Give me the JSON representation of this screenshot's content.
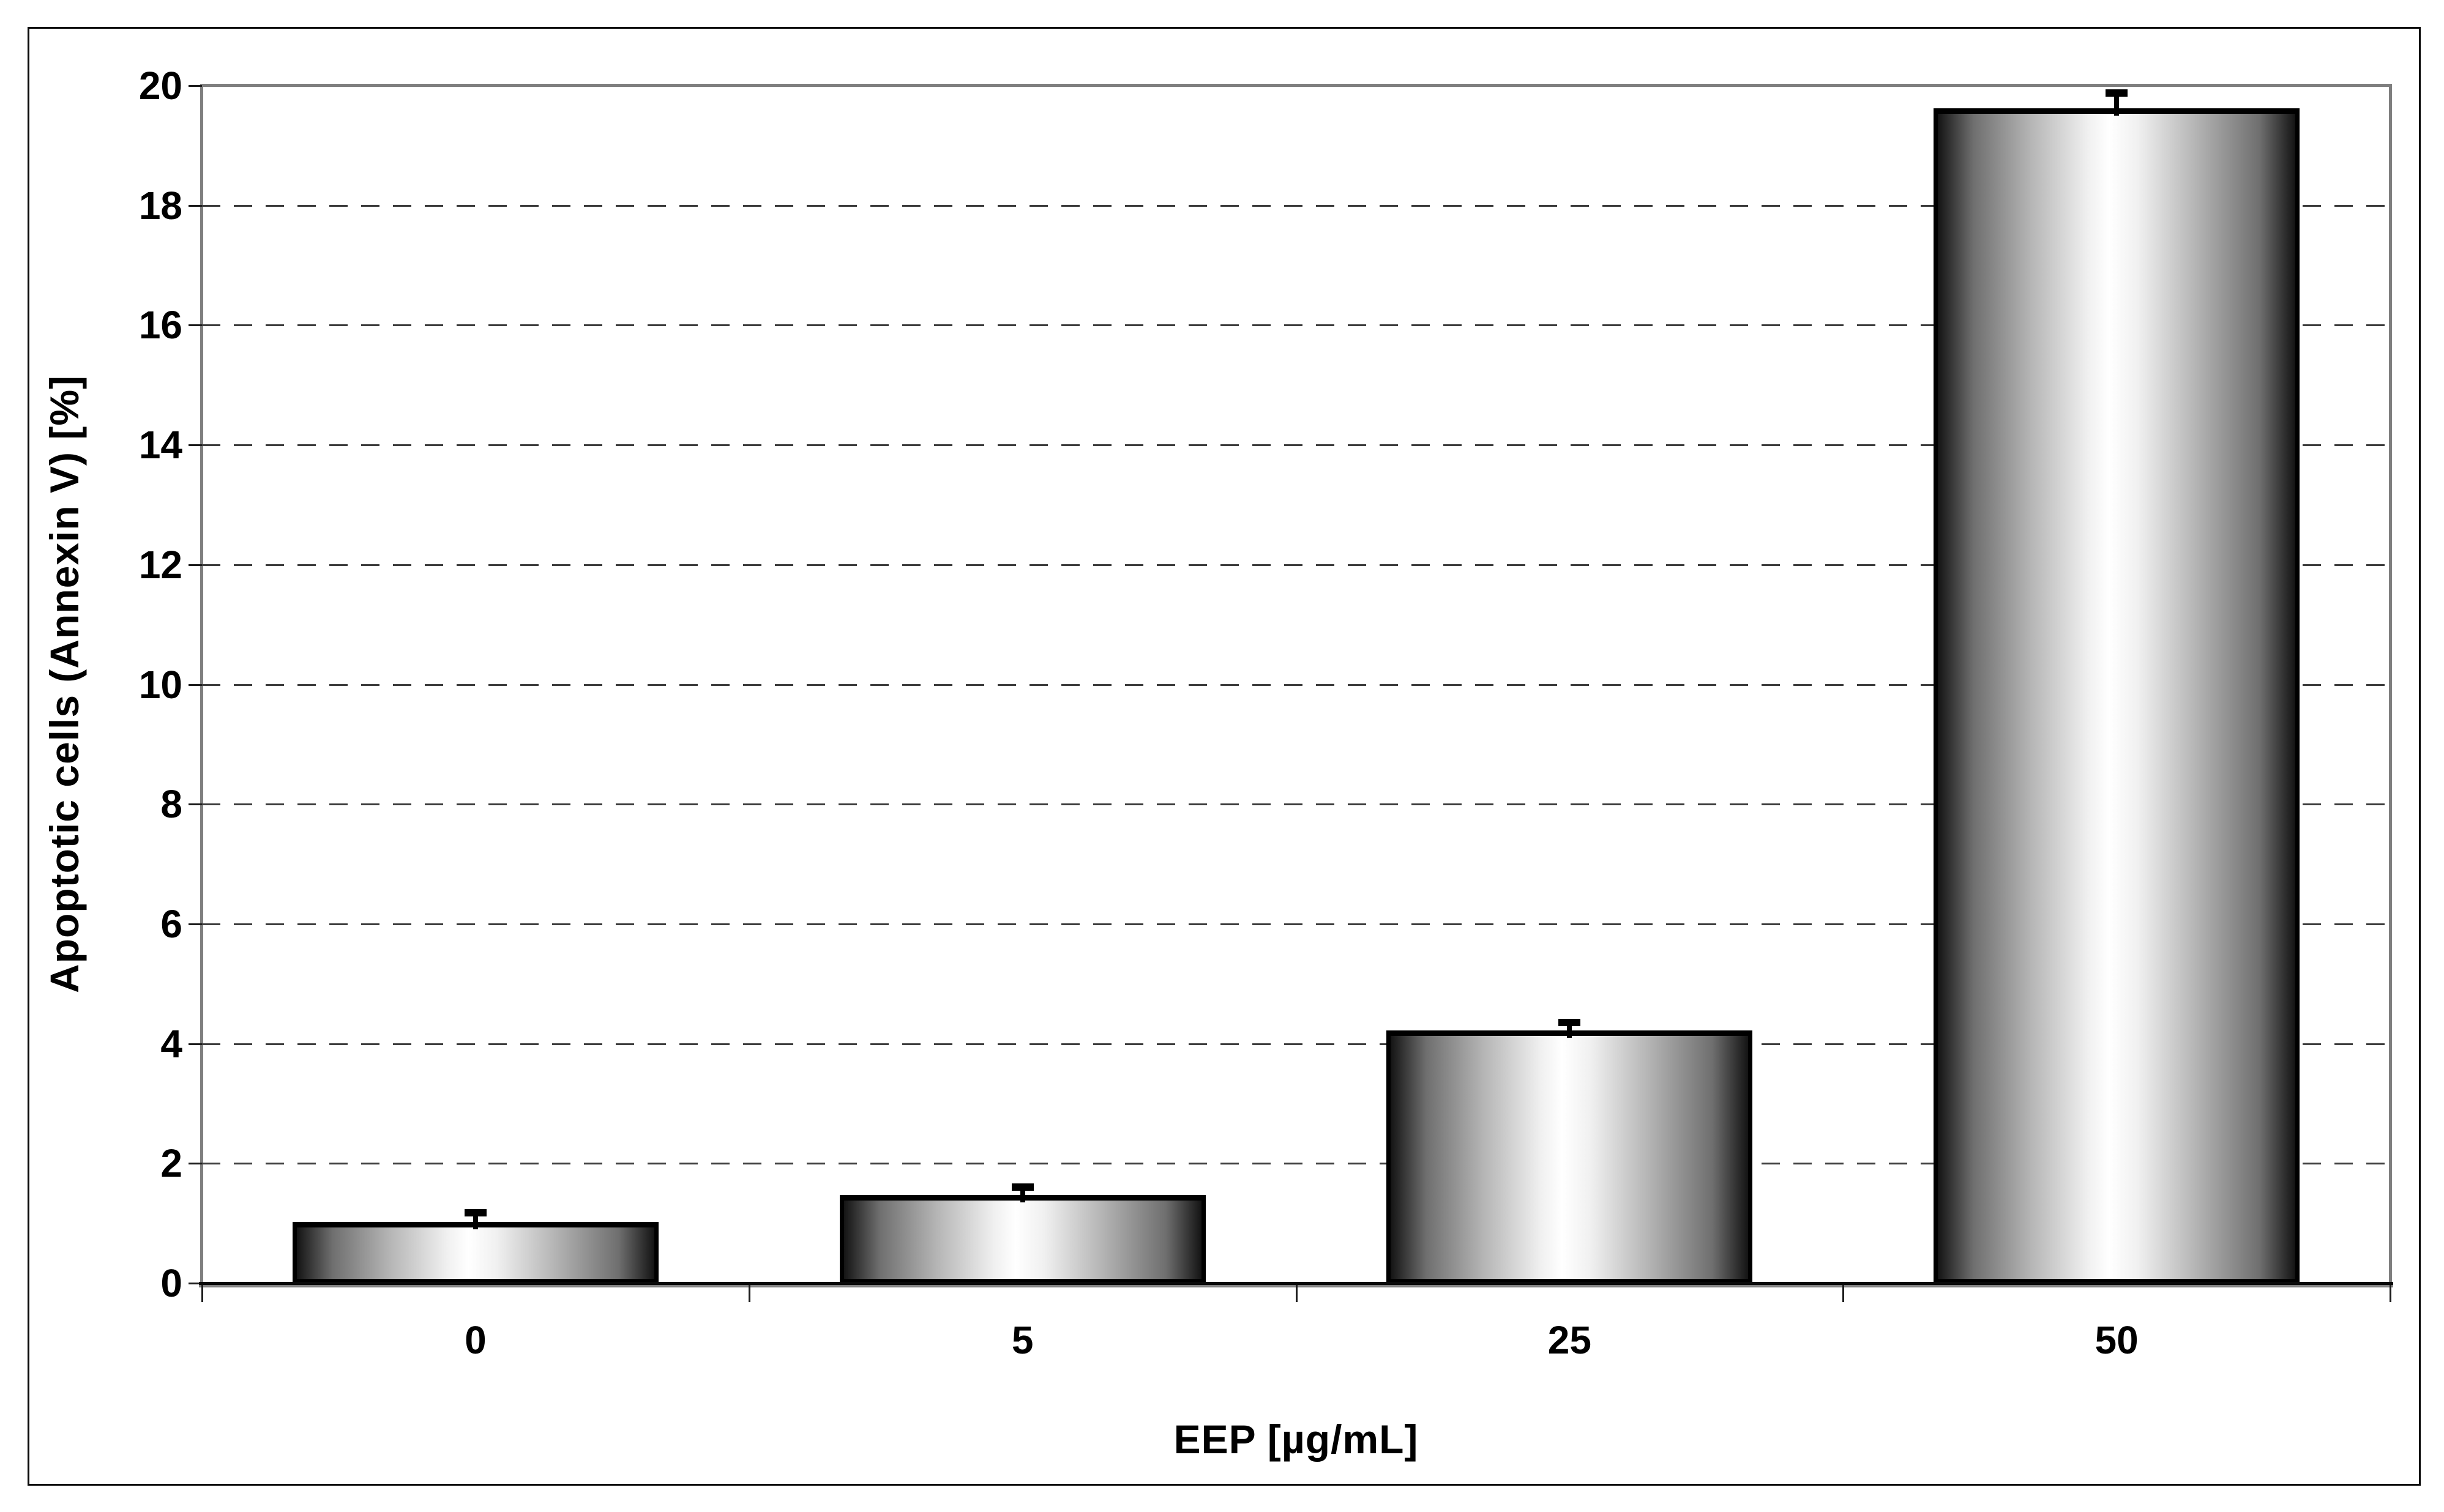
{
  "chart_data": {
    "type": "bar",
    "title": "",
    "categories": [
      "0",
      "5",
      "25",
      "50"
    ],
    "values": [
      1.0,
      1.45,
      4.2,
      19.6
    ],
    "errors": [
      0.18,
      0.15,
      0.15,
      0.28
    ],
    "xlabel": "EEP [µg/mL]",
    "ylabel": "Apoptotic cells (Annexin V) [%]",
    "ylim": [
      0,
      20
    ],
    "yticks": [
      0,
      2,
      4,
      6,
      8,
      10,
      12,
      14,
      16,
      18,
      20
    ],
    "ytick_labels": [
      "0",
      "2",
      "4",
      "6",
      "8",
      "10",
      "12",
      "14",
      "16",
      "18",
      "20"
    ],
    "grid": {
      "horizontal": true,
      "style": "dashed"
    },
    "legend": false,
    "error_bars": "upper only, T-cap",
    "bar_fill": "horizontal gradient dark-white-dark (cylinder shading)",
    "colors": {
      "bar_border": "#000000",
      "bar_edge_shade": "#141414",
      "bar_center_shade": "#ffffff",
      "gridline": "#3d3d3d",
      "plot_border": "#7f7f7f",
      "axis_line": "#0a0a0a",
      "text": "#000000",
      "background": "#ffffff"
    }
  }
}
